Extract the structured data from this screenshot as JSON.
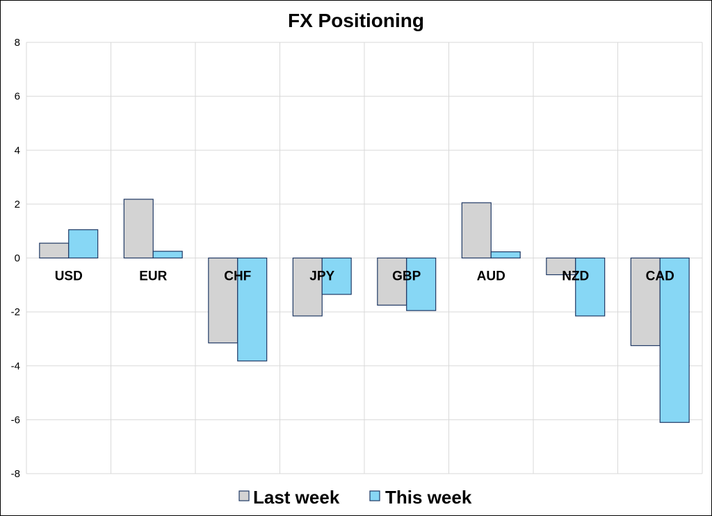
{
  "chart_data": {
    "type": "bar",
    "title": "FX Positioning",
    "categories": [
      "USD",
      "EUR",
      "CHF",
      "JPY",
      "GBP",
      "AUD",
      "NZD",
      "CAD"
    ],
    "series": [
      {
        "name": "Last week",
        "values": [
          0.55,
          2.18,
          -3.15,
          -2.15,
          -1.75,
          2.05,
          -0.62,
          -3.25
        ],
        "color": "#d3d3d3"
      },
      {
        "name": "This week",
        "values": [
          1.05,
          0.25,
          -3.82,
          -1.35,
          -1.95,
          0.23,
          -2.15,
          -6.1
        ],
        "color": "#87d7f5"
      }
    ],
    "ylim": [
      -8,
      8
    ],
    "yticks": [
      8,
      6,
      4,
      2,
      0,
      -2,
      -4,
      -6,
      -8
    ],
    "grid": true,
    "legend_position": "bottom",
    "bar_border_color": "#1f3864"
  }
}
